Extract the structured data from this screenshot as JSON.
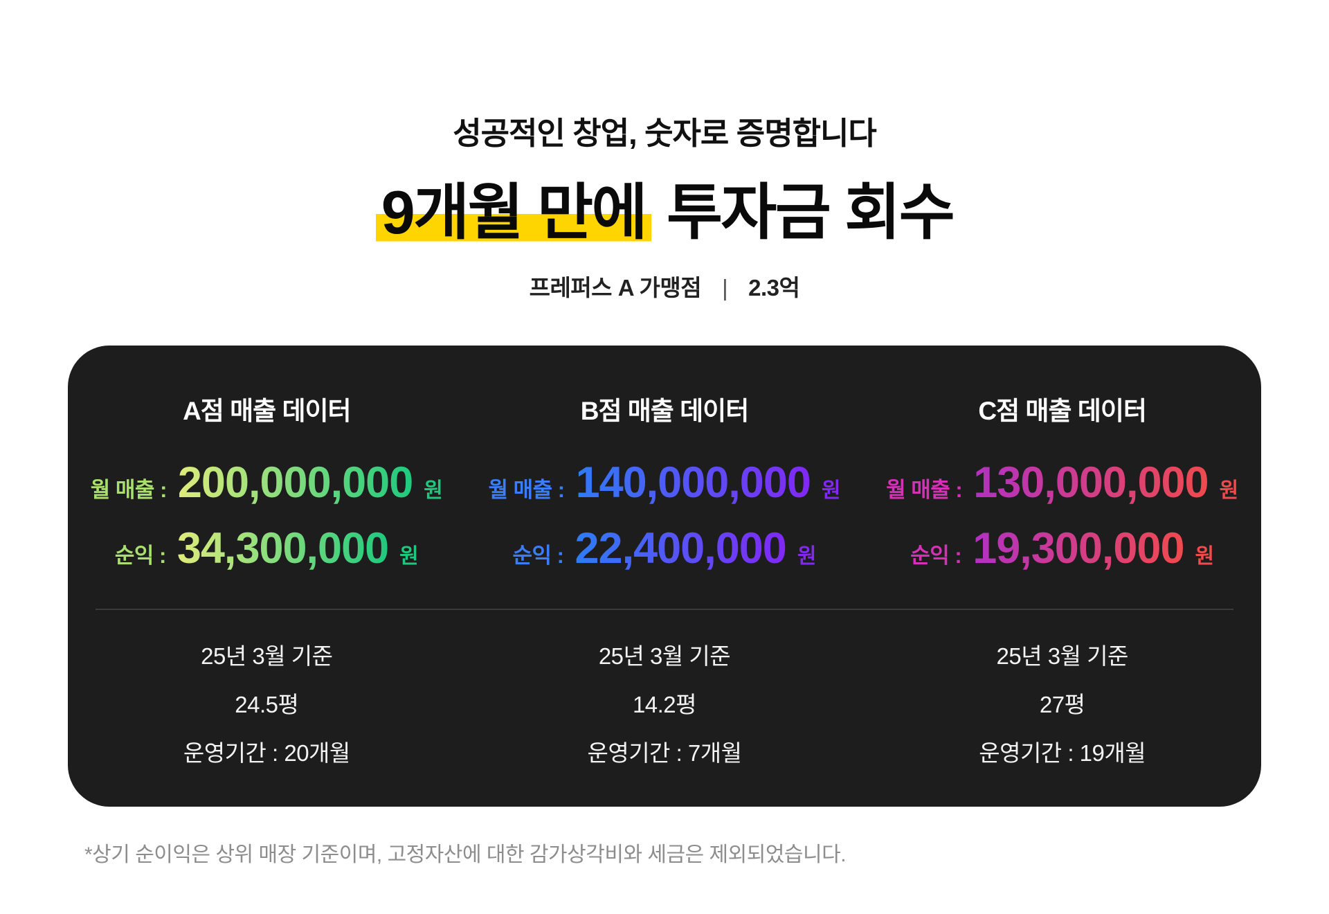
{
  "header": {
    "tagline": "성공적인 창업, 숫자로 증명합니다",
    "headline_highlight": "9개월 만에",
    "headline_rest": " 투자금 회수",
    "subtitle_left": "프레퍼스 A 가맹점",
    "subtitle_divider": "|",
    "subtitle_right": "2.3억",
    "highlight_color": "#ffd500"
  },
  "card": {
    "background": "#1d1d1d",
    "divider_color": "#3a3a3a",
    "columns": [
      {
        "title": "A점 매출 데이터",
        "revenue_label": "월 매출 :",
        "revenue_value": "200,000,000",
        "revenue_unit": "원",
        "profit_label": "순익 :",
        "profit_value": "34,300,000",
        "profit_unit": "원",
        "label_color": "#a9df6e",
        "gradient_from": "#e0ec7c",
        "gradient_to": "#1ec97e",
        "unit_color": "#1ec97e",
        "info": [
          "25년 3월 기준",
          "24.5평",
          "운영기간 : 20개월"
        ]
      },
      {
        "title": "B점 매출 데이터",
        "revenue_label": "월 매출 :",
        "revenue_value": "140,000,000",
        "revenue_unit": "원",
        "profit_label": "순익 :",
        "profit_value": "22,400,000",
        "profit_unit": "원",
        "label_color": "#3b7cf7",
        "gradient_from": "#2e7cf6",
        "gradient_to": "#8128f4",
        "unit_color": "#8128f4",
        "info": [
          "25년 3월 기준",
          "14.2평",
          "운영기간 : 7개월"
        ]
      },
      {
        "title": "C점 매출 데이터",
        "revenue_label": "월 매출 :",
        "revenue_value": "130,000,000",
        "revenue_unit": "원",
        "profit_label": "순익 :",
        "profit_value": "19,300,000",
        "profit_unit": "원",
        "label_color": "#d431b6",
        "gradient_from": "#b231c3",
        "gradient_to": "#f04a4d",
        "unit_color": "#f04a4d",
        "info": [
          "25년 3월 기준",
          "27평",
          "운영기간 : 19개월"
        ]
      }
    ]
  },
  "footnote": "*상기 순이익은 상위 매장 기준이며, 고정자산에 대한 감가상각비와 세금은 제외되었습니다."
}
